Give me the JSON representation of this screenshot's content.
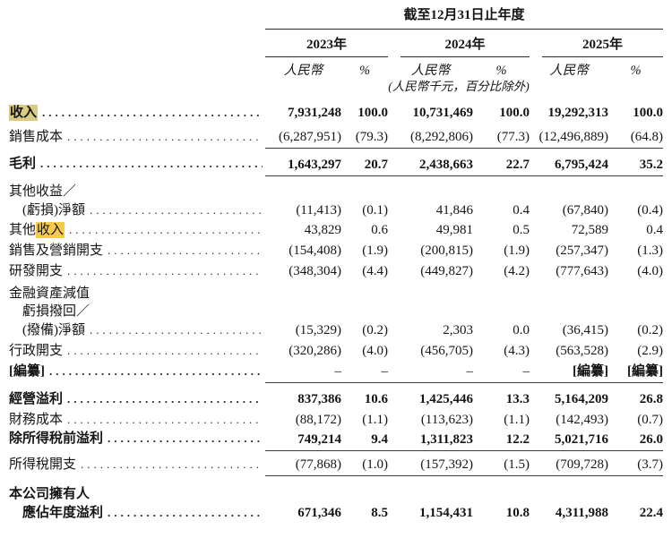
{
  "header": {
    "period_title": "截至12月31日止年度",
    "years": [
      "2023年",
      "2024年",
      "2025年"
    ],
    "currency_label": "人民幣",
    "percent_label": "%",
    "unit_note": "(人民幣千元，百分比除外)"
  },
  "highlight_colors": {
    "khaki": "#d9cc82",
    "yellow": "#f8ca4a"
  },
  "lines": [
    {
      "label": [
        {
          "t": "收入",
          "hl": "khaki"
        }
      ],
      "bold": true,
      "dots": true,
      "vbold": true,
      "gap": 12,
      "values": [
        "7,931,248",
        "100.0",
        "10,731,469",
        "100.0",
        "19,292,313",
        "100.0"
      ]
    },
    {
      "label": [
        {
          "t": "銷售成本"
        }
      ],
      "dots": true,
      "rule": true,
      "gap": 9,
      "values": [
        "(6,287,951)",
        "(79.3)",
        "(8,292,806)",
        "(77.3)",
        "(12,496,889)",
        "(64.8)"
      ]
    },
    {
      "label": [
        {
          "t": "毛利"
        }
      ],
      "bold": true,
      "dots": true,
      "vbold": true,
      "rule": true,
      "gap": 8,
      "values": [
        "1,643,297",
        "20.7",
        "2,438,663",
        "22.7",
        "6,795,424",
        "35.2"
      ]
    },
    {
      "label": [
        {
          "t": "其他收益／"
        }
      ],
      "gap": 8
    },
    {
      "label": [
        {
          "t": "(虧損)淨額"
        }
      ],
      "indent": true,
      "dots": true,
      "gap": 3,
      "values": [
        "(11,413)",
        "(0.1)",
        "41,846",
        "0.4",
        "(67,840)",
        "(0.4)"
      ]
    },
    {
      "label": [
        {
          "t": "其他"
        },
        {
          "t": "收入",
          "hl": "yellow"
        }
      ],
      "dots": true,
      "gap": 4,
      "values": [
        "43,829",
        "0.6",
        "49,981",
        "0.5",
        "72,589",
        "0.4"
      ]
    },
    {
      "label": [
        {
          "t": "銷售及營銷開支"
        }
      ],
      "dots": true,
      "gap": 5,
      "values": [
        "(154,408)",
        "(1.9)",
        "(200,815)",
        "(1.9)",
        "(257,347)",
        "(1.3)"
      ]
    },
    {
      "label": [
        {
          "t": "研發開支"
        }
      ],
      "dots": true,
      "gap": 5,
      "values": [
        "(348,304)",
        "(4.4)",
        "(449,827)",
        "(4.2)",
        "(777,643)",
        "(4.0)"
      ]
    },
    {
      "label": [
        {
          "t": "金融資產減值"
        }
      ],
      "gap": 7
    },
    {
      "label": [
        {
          "t": "虧損撥回／"
        }
      ],
      "indent": true,
      "gap": 2
    },
    {
      "label": [
        {
          "t": "(撥備)淨額"
        }
      ],
      "indent": true,
      "dots": true,
      "gap": 3,
      "values": [
        "(15,329)",
        "(0.2)",
        "2,303",
        "0.0",
        "(36,415)",
        "(0.2)"
      ]
    },
    {
      "label": [
        {
          "t": "行政開支"
        }
      ],
      "dots": true,
      "gap": 5,
      "values": [
        "(320,286)",
        "(4.0)",
        "(456,705)",
        "(4.3)",
        "(563,528)",
        "(2.9)"
      ]
    },
    {
      "label": [
        {
          "t": "[編纂]"
        }
      ],
      "bold": true,
      "dots": true,
      "rule": true,
      "gap": 5,
      "values": [
        "–",
        "–",
        "–",
        "–",
        "[編纂]",
        "[編纂]"
      ],
      "vbold_mask": [
        false,
        false,
        false,
        false,
        true,
        true
      ]
    },
    {
      "label": [
        {
          "t": "經營溢利"
        }
      ],
      "bold": true,
      "dots": true,
      "vbold": true,
      "gap": 9,
      "values": [
        "837,386",
        "10.6",
        "1,425,446",
        "13.3",
        "5,164,209",
        "26.8"
      ]
    },
    {
      "label": [
        {
          "t": "財務成本"
        }
      ],
      "dots": true,
      "gap": 5,
      "values": [
        "(88,172)",
        "(1.1)",
        "(113,623)",
        "(1.1)",
        "(142,493)",
        "(0.7)"
      ]
    },
    {
      "label": [
        {
          "t": "除所得稅前溢利"
        }
      ],
      "bold": true,
      "dots": true,
      "vbold": true,
      "rule": true,
      "gap": 3,
      "values": [
        "749,214",
        "9.4",
        "1,311,823",
        "12.2",
        "5,021,716",
        "26.0"
      ]
    },
    {
      "label": [
        {
          "t": "所得稅開支"
        }
      ],
      "dots": true,
      "rule": true,
      "gap": 6,
      "values": [
        "(77,868)",
        "(1.0)",
        "(157,392)",
        "(1.5)",
        "(709,728)",
        "(3.7)"
      ]
    },
    {
      "label": [
        {
          "t": "本公司擁有人"
        }
      ],
      "bold": true,
      "gap": 11
    },
    {
      "label": [
        {
          "t": "應佔年度溢利"
        }
      ],
      "bold": true,
      "indent": true,
      "dots": true,
      "vbold": true,
      "gap": 3,
      "values": [
        "671,346",
        "8.5",
        "1,154,431",
        "10.8",
        "4,311,988",
        "22.4"
      ]
    }
  ]
}
